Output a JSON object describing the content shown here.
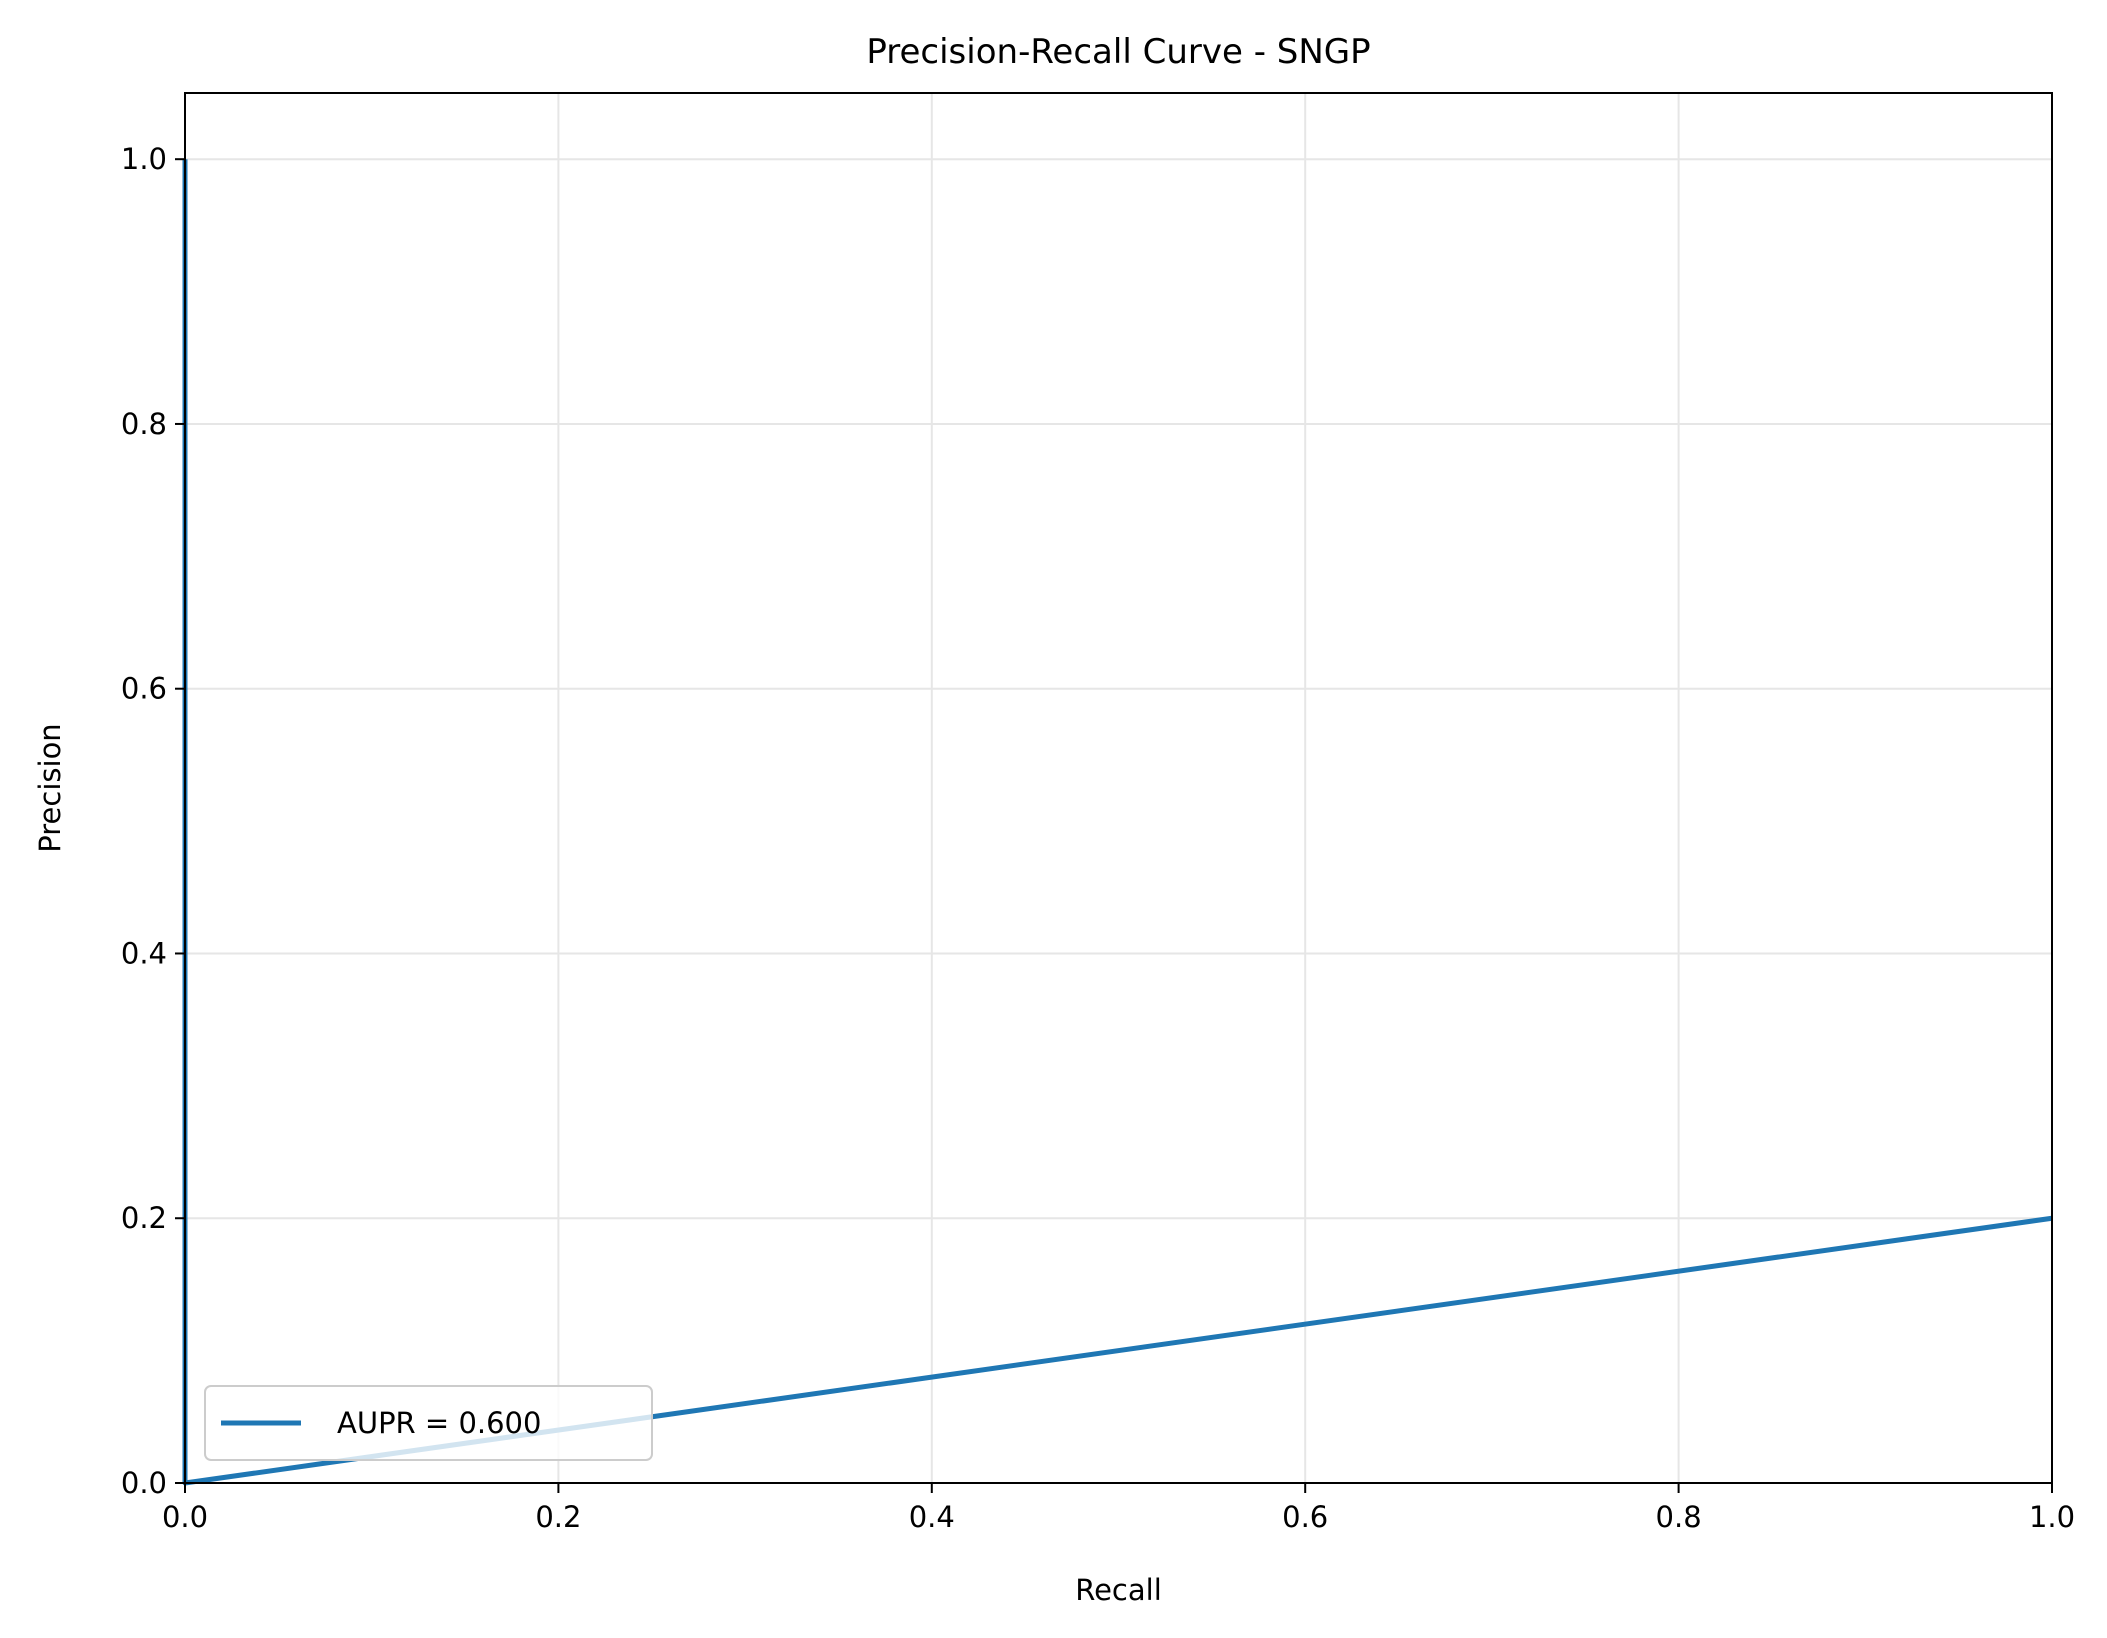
{
  "chart_data": {
    "type": "line",
    "title": "Precision-Recall Curve - SNGP",
    "xlabel": "Recall",
    "ylabel": "Precision",
    "xlim": [
      0,
      1
    ],
    "ylim": [
      0,
      1.05
    ],
    "grid": true,
    "legend_position": "lower-left",
    "x_ticks": [
      0.0,
      0.2,
      0.4,
      0.6,
      0.8,
      1.0
    ],
    "x_tick_labels": [
      "0.0",
      "0.2",
      "0.4",
      "0.6",
      "0.8",
      "1.0"
    ],
    "y_ticks": [
      0.0,
      0.2,
      0.4,
      0.6,
      0.8,
      1.0
    ],
    "y_tick_labels": [
      "0.0",
      "0.2",
      "0.4",
      "0.6",
      "0.8",
      "1.0"
    ],
    "series": [
      {
        "name": "AUPR = 0.600",
        "color": "#1f77b4",
        "x": [
          0.0,
          0.0,
          1.0
        ],
        "y": [
          1.0,
          0.0,
          0.2
        ]
      }
    ]
  }
}
